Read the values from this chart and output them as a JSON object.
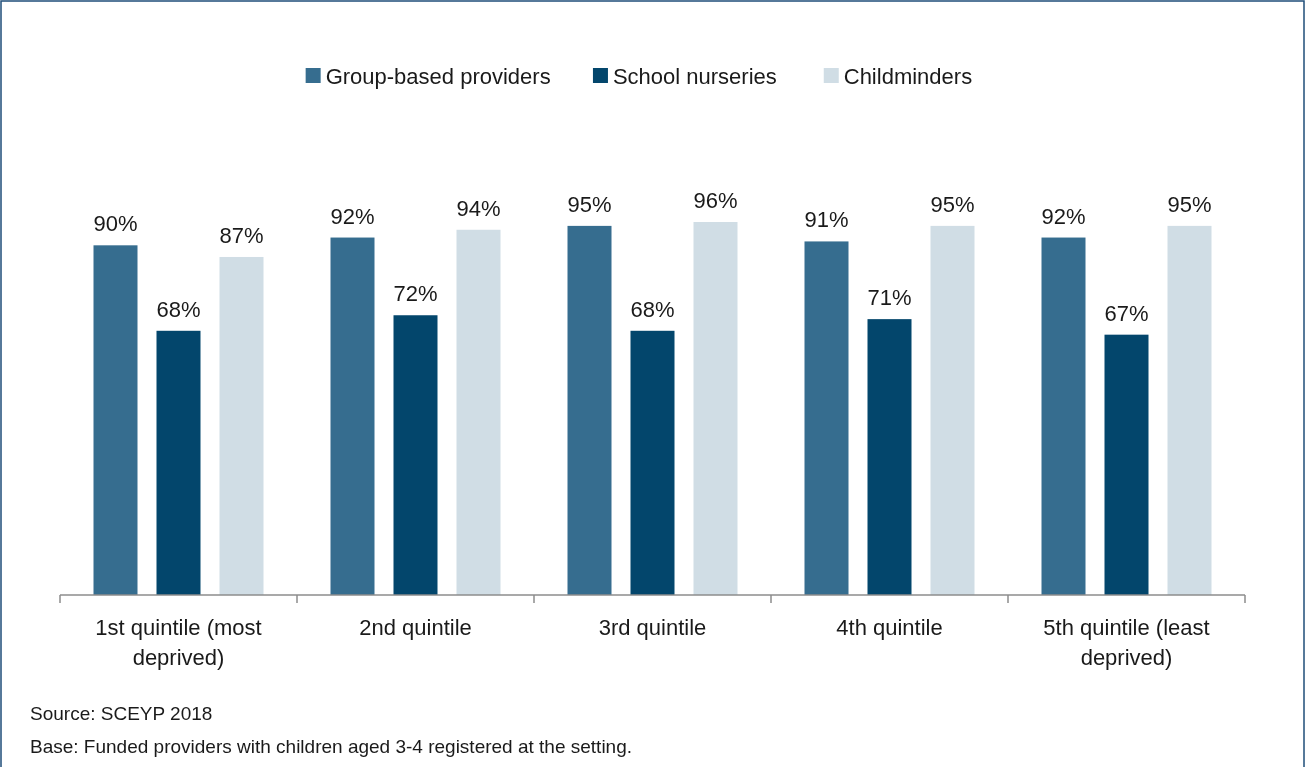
{
  "chart_data": {
    "type": "bar",
    "categories": [
      "1st quintile (most deprived)",
      "2nd quintile",
      "3rd quintile",
      "4th quintile",
      "5th quintile (least deprived)"
    ],
    "series": [
      {
        "name": "Group-based providers",
        "color": "#366d8f",
        "values": [
          90,
          92,
          95,
          91,
          92
        ],
        "value_labels": [
          "90%",
          "92%",
          "95%",
          "91%",
          "92%"
        ]
      },
      {
        "name": "School nurseries",
        "color": "#03466c",
        "values": [
          68,
          72,
          68,
          71,
          67
        ],
        "value_labels": [
          "68%",
          "72%",
          "68%",
          "71%",
          "67%"
        ]
      },
      {
        "name": "Childminders",
        "color": "#d0dde5",
        "values": [
          87,
          94,
          96,
          95,
          95
        ],
        "value_labels": [
          "87%",
          "94%",
          "96%",
          "95%",
          "95%"
        ]
      }
    ],
    "legend": "top",
    "tick_labels": "x",
    "annotations": [
      "Source: SCEYP 2018",
      "Base: Funded providers with children aged 3-4 registered at the setting."
    ]
  }
}
